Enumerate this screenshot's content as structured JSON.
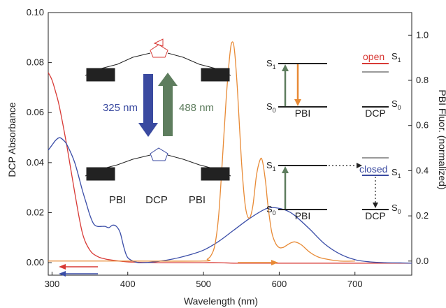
{
  "chart_data": {
    "type": "line",
    "xlabel": "Wavelength (nm)",
    "ylabel_left": "DCP Absorbance",
    "ylabel_right": "PBI Fluor. (normalized)",
    "xlim": [
      295,
      775
    ],
    "ylim_left": [
      -0.005,
      0.1
    ],
    "ylim_right": [
      -0.0625,
      1.1
    ],
    "xticks": [
      300,
      400,
      500,
      600,
      700
    ],
    "yticks_left": [
      "0.00",
      "0.02",
      "0.04",
      "0.06",
      "0.08",
      "0.10"
    ],
    "yticks_right": [
      "0.0",
      "0.2",
      "0.4",
      "0.6",
      "0.8",
      "1.0"
    ],
    "series": [
      {
        "color": "#d83a36",
        "axis": "left",
        "x": [
          295,
          300,
          305,
          310,
          320,
          330,
          340,
          350,
          360,
          370,
          380,
          390,
          400,
          410,
          420,
          440,
          460,
          480,
          500,
          520,
          540,
          560,
          580,
          600,
          620,
          640,
          660,
          680,
          700,
          720,
          740,
          760,
          775
        ],
        "y": [
          0.076,
          0.073,
          0.068,
          0.062,
          0.046,
          0.028,
          0.012,
          0.005,
          0.0025,
          0.0015,
          0.001,
          0.0006,
          0.0003,
          0.0002,
          0.0001,
          0.0,
          0.0,
          0.0,
          0.0,
          0.0,
          -0.0002,
          -0.0002,
          -0.0002,
          -0.0002,
          -0.0002,
          -0.0002,
          -0.0002,
          -0.0002,
          -0.0002,
          -0.0002,
          -0.0002,
          -0.0002,
          -0.0002
        ]
      },
      {
        "color": "#3b4ea8",
        "axis": "left",
        "x": [
          295,
          300,
          305,
          310,
          315,
          320,
          330,
          340,
          345,
          350,
          355,
          360,
          365,
          370,
          375,
          380,
          385,
          390,
          395,
          400,
          410,
          420,
          440,
          460,
          480,
          500,
          520,
          540,
          560,
          580,
          590,
          600,
          610,
          620,
          640,
          660,
          680,
          700,
          720,
          740,
          760,
          775
        ],
        "y": [
          0.045,
          0.047,
          0.049,
          0.05,
          0.049,
          0.047,
          0.04,
          0.029,
          0.024,
          0.019,
          0.0155,
          0.0145,
          0.0145,
          0.0145,
          0.014,
          0.015,
          0.0145,
          0.012,
          0.006,
          0.002,
          0.0003,
          0.0,
          0.0005,
          0.0015,
          0.003,
          0.005,
          0.0085,
          0.013,
          0.0175,
          0.0212,
          0.022,
          0.0217,
          0.0208,
          0.019,
          0.0135,
          0.0075,
          0.0035,
          0.0012,
          0.0003,
          0.0,
          -0.0001,
          -0.0002
        ]
      },
      {
        "color": "#e88a35",
        "axis": "right",
        "x": [
          295,
          400,
          500,
          505,
          510,
          515,
          520,
          525,
          530,
          535,
          538,
          541,
          545,
          550,
          555,
          560,
          565,
          570,
          575,
          578,
          582,
          585,
          590,
          595,
          600,
          605,
          610,
          615,
          620,
          625,
          630,
          640,
          650,
          660,
          680,
          700
        ],
        "y": [
          0.0,
          0.0,
          0.0,
          0.008,
          0.025,
          0.07,
          0.2,
          0.45,
          0.72,
          0.92,
          0.97,
          0.93,
          0.75,
          0.45,
          0.25,
          0.19,
          0.24,
          0.38,
          0.45,
          0.44,
          0.35,
          0.25,
          0.13,
          0.08,
          0.06,
          0.06,
          0.07,
          0.08,
          0.085,
          0.08,
          0.07,
          0.04,
          0.02,
          0.01,
          0.0,
          0.0
        ]
      }
    ],
    "inset_molecule": {
      "arrow_down_text": "325 nm",
      "arrow_up_text": "488 nm",
      "labels": [
        "PBI",
        "DCP",
        "PBI"
      ],
      "colors": {
        "down": "#3a4aa0",
        "up": "#5e7d5e"
      }
    },
    "energy_diagram": {
      "s1": "S",
      "s1_sub": "1",
      "s0": "S",
      "s0_sub": "0",
      "pbi": "PBI",
      "dcp": "DCP",
      "open": "open",
      "closed": "closed",
      "colors": {
        "open": "#d83a36",
        "closed": "#3a4aa0",
        "grey": "#9a9a9a",
        "green": "#5e7d5e",
        "orange": "#e88a35"
      }
    }
  }
}
